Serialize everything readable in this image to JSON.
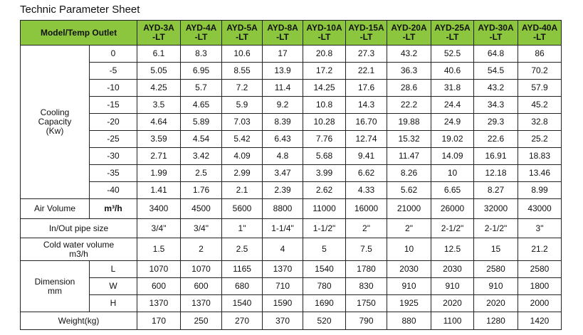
{
  "title": "Technic Parameter Sheet",
  "table": {
    "header": {
      "label": "Model/Temp Outlet",
      "models": [
        [
          "AYD-3A",
          "-LT"
        ],
        [
          "AYD-4A",
          "-LT"
        ],
        [
          "AYD-5A",
          "-LT"
        ],
        [
          "AYD-8A",
          "-LT"
        ],
        [
          "AYD-10A",
          "-LT"
        ],
        [
          "AYD-15A",
          "-LT"
        ],
        [
          "AYD-20A",
          "-LT"
        ],
        [
          "AYD-25A",
          "-LT"
        ],
        [
          "AYD-30A",
          "-LT"
        ],
        [
          "AYD-40A",
          "-LT"
        ]
      ]
    },
    "cooling": {
      "label": [
        "Cooling",
        "Capacity",
        "(Kw)"
      ],
      "rows": [
        {
          "temp": "0",
          "values": [
            "6.1",
            "8.3",
            "10.6",
            "17",
            "20.8",
            "27.3",
            "43.2",
            "52.5",
            "64.8",
            "86"
          ]
        },
        {
          "temp": "-5",
          "values": [
            "5.05",
            "6.95",
            "8.55",
            "13.9",
            "17.2",
            "22.1",
            "36.3",
            "40.6",
            "54.5",
            "70.2"
          ]
        },
        {
          "temp": "-10",
          "values": [
            "4.25",
            "5.7",
            "7.2",
            "11.4",
            "14.25",
            "17.6",
            "28.6",
            "31.8",
            "43.2",
            "57.9"
          ]
        },
        {
          "temp": "-15",
          "values": [
            "3.5",
            "4.65",
            "5.9",
            "9.2",
            "10.8",
            "14.3",
            "22.2",
            "24.4",
            "34.3",
            "45.2"
          ]
        },
        {
          "temp": "-20",
          "values": [
            "4.64",
            "5.89",
            "7.03",
            "8.39",
            "10.28",
            "16.70",
            "19.88",
            "24.9",
            "29.3",
            "32.8"
          ]
        },
        {
          "temp": "-25",
          "values": [
            "3.59",
            "4.54",
            "5.42",
            "6.43",
            "7.76",
            "12.74",
            "15.32",
            "19.02",
            "22.6",
            "25.2"
          ]
        },
        {
          "temp": "-30",
          "values": [
            "2.71",
            "3.42",
            "4.09",
            "4.8",
            "5.68",
            "9.41",
            "11.47",
            "14.09",
            "16.91",
            "18.83"
          ]
        },
        {
          "temp": "-35",
          "values": [
            "1.99",
            "2.5",
            "2.99",
            "3.47",
            "3.99",
            "6.62",
            "8.26",
            "10",
            "12.18",
            "13.46"
          ]
        },
        {
          "temp": "-40",
          "values": [
            "1.41",
            "1.76",
            "2.1",
            "2.39",
            "2.62",
            "4.33",
            "5.62",
            "6.65",
            "8.27",
            "8.99"
          ]
        }
      ]
    },
    "air_volume": {
      "label": "Air Volume",
      "unit": "m³/h",
      "values": [
        "3400",
        "4500",
        "5600",
        "8800",
        "11000",
        "16000",
        "21000",
        "26000",
        "32000",
        "43000"
      ]
    },
    "pipe_size": {
      "label": "In/Out pipe size",
      "values": [
        "3/4\"",
        "3/4\"",
        "1\"",
        "1-1/4\"",
        "1-1/2\"",
        "2\"",
        "2\"",
        "2-1/2\"",
        "2-1/2\"",
        "3\""
      ]
    },
    "cold_water": {
      "label": [
        "Cold water volume",
        "m3/h"
      ],
      "values": [
        "1.5",
        "2",
        "2.5",
        "4",
        "5",
        "7.5",
        "10",
        "12.5",
        "15",
        "21.2"
      ]
    },
    "dimension": {
      "label": [
        "Dimension",
        "mm"
      ],
      "rows": [
        {
          "axis": "L",
          "values": [
            "1070",
            "1070",
            "1165",
            "1370",
            "1540",
            "1780",
            "2030",
            "2030",
            "2580",
            "2580"
          ]
        },
        {
          "axis": "W",
          "values": [
            "600",
            "600",
            "680",
            "710",
            "780",
            "830",
            "910",
            "910",
            "910",
            "1800"
          ]
        },
        {
          "axis": "H",
          "values": [
            "1370",
            "1370",
            "1540",
            "1590",
            "1690",
            "1750",
            "1925",
            "2020",
            "2020",
            "2000"
          ]
        }
      ]
    },
    "weight": {
      "label": "Weight(kg)",
      "values": [
        "170",
        "250",
        "270",
        "370",
        "520",
        "790",
        "880",
        "1100",
        "1280",
        "1420"
      ]
    }
  }
}
